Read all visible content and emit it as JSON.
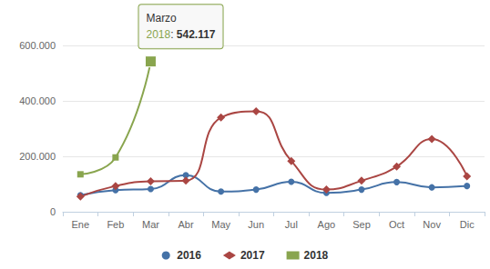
{
  "chart_data": {
    "type": "line",
    "categories": [
      "Ene",
      "Feb",
      "Mar",
      "Abr",
      "May",
      "Jun",
      "Jul",
      "Ago",
      "Sep",
      "Oct",
      "Nov",
      "Dic"
    ],
    "series": [
      {
        "name": "2016",
        "color": "#4572a7",
        "marker": "circle",
        "values": [
          60000,
          78000,
          82000,
          132000,
          73000,
          80000,
          108000,
          68000,
          80000,
          107000,
          88000,
          93000
        ]
      },
      {
        "name": "2017",
        "color": "#aa4643",
        "marker": "diamond",
        "values": [
          55000,
          93000,
          110000,
          112000,
          340000,
          362000,
          183000,
          80000,
          112000,
          163000,
          262000,
          128000
        ]
      },
      {
        "name": "2018",
        "color": "#89a54e",
        "marker": "square",
        "values": [
          135000,
          196000,
          542117,
          null,
          null,
          null,
          null,
          null,
          null,
          null,
          null,
          null
        ]
      }
    ],
    "ylim": [
      0,
      600000
    ],
    "yticks": [
      0,
      {
        "value": 200000,
        "label": "200.000"
      },
      {
        "value": 400000,
        "label": "400.000"
      },
      {
        "value": 600000,
        "label": "600.000"
      }
    ],
    "grid": true,
    "legend": "bottom",
    "annotations": [
      {
        "category": "Mar",
        "series": "2018",
        "value": 542117,
        "title": "Marzo",
        "text": "2018: 542.117"
      }
    ]
  }
}
